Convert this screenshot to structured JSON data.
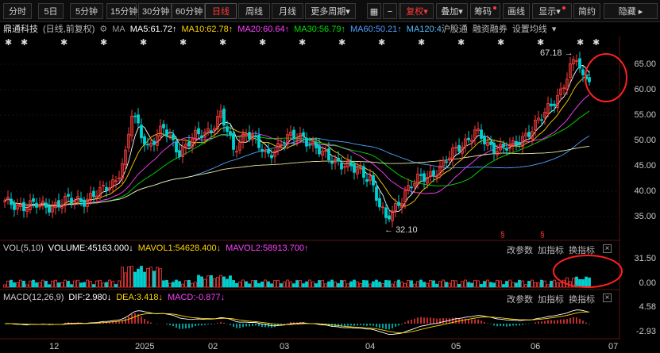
{
  "toolbar": {
    "periods": [
      "分时",
      "5日",
      "5分钟",
      "15分钟",
      "30分钟",
      "60分钟",
      "日线",
      "周线",
      "月线",
      "更多周期"
    ],
    "active_period": "日线",
    "more_arrow": "▾",
    "grid_icon": "grid-icon",
    "minus": "−",
    "plus": "+",
    "fuquan": "复权",
    "diejia": "叠加",
    "choumaa": "筹码",
    "huaxian": "画线",
    "xianshi": "显示",
    "jianyue": "简约",
    "yincang": "隐藏"
  },
  "legend": {
    "name": "鼎通科技",
    "mode": "(日线,前复权)",
    "ma_label": "MA",
    "ma5": "MA5:61.72↑",
    "ma10": "MA10:62.78↑",
    "ma20": "MA20:60.64↑",
    "ma30": "MA30:56.79↑",
    "ma60": "MA60:50.21↑",
    "ma120": "MA120:4",
    "hugutong": "沪股通",
    "rongzi": "融资融券",
    "shezhi": "设置均线"
  },
  "price_axis": [
    "65.00",
    "60.00",
    "55.00",
    "50.00",
    "45.00",
    "40.00",
    "35.00"
  ],
  "annotations": {
    "high": "67.18",
    "low": "32.10"
  },
  "vol": {
    "title": "VOL(5,10)",
    "volume": "VOLUME:45163.000↓",
    "mavol1": "MAVOL1:54628.400↓",
    "mavol2": "MAVOL2:58913.700↑",
    "axis": [
      "31.50",
      "0.00"
    ]
  },
  "macd": {
    "title": "MACD(12,26,9)",
    "dif": "DIF:2.980↓",
    "dea": "DEA:3.418↓",
    "macd": "MACD:-0.877↓",
    "axis": [
      "4.58",
      "-2.93"
    ]
  },
  "panel_buttons": {
    "params": "改参数",
    "add": "加指标",
    "swap": "换指标",
    "close": "×"
  },
  "date_axis": [
    "12",
    "2025",
    "02",
    "03",
    "04",
    "05",
    "06",
    "07"
  ],
  "colors": {
    "up": "#ff3b3b",
    "down": "#00d0d0",
    "ma5": "#ffffff",
    "ma10": "#ffd400",
    "ma20": "#ff40ff",
    "ma30": "#00e000",
    "ma60": "#4fa0ff",
    "ma120": "#e8e8a0",
    "highlight": "#ff2020"
  }
}
